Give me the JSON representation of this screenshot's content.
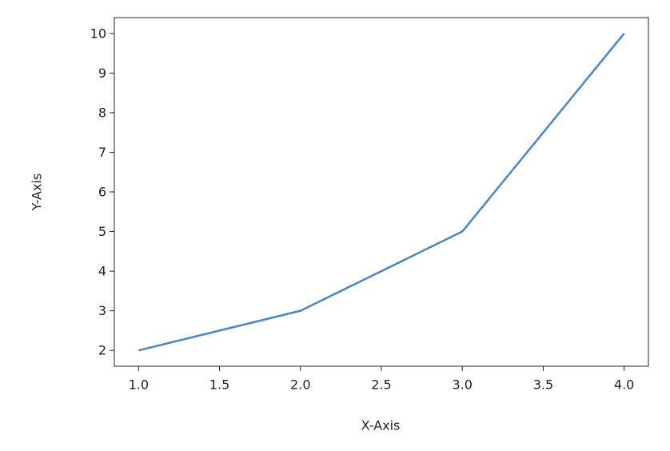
{
  "chart_data": {
    "type": "line",
    "x_label": "X-Axis",
    "y_label": "Y-Axis",
    "x": [
      1,
      2,
      3,
      4
    ],
    "series": [
      {
        "color": "#4a86c5",
        "values": [
          2,
          3,
          5,
          10
        ]
      }
    ],
    "xlim": [
      0.85,
      4.15
    ],
    "xticks": [
      {
        "value": 1,
        "label": "1.0"
      },
      {
        "value": 1.5,
        "label": "1.5"
      },
      {
        "value": 2,
        "label": "2.0"
      },
      {
        "value": 2.5,
        "label": "2.5"
      },
      {
        "value": 3,
        "label": "3.0"
      },
      {
        "value": 3.5,
        "label": "3.5"
      },
      {
        "value": 4,
        "label": "4.0"
      }
    ],
    "ylim": [
      1.6,
      10.4
    ],
    "yticks": [
      2,
      3,
      4,
      5,
      6,
      7,
      8,
      9,
      10
    ],
    "grid": false
  }
}
